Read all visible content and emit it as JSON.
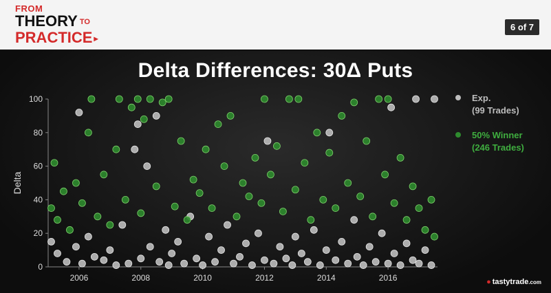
{
  "header": {
    "logo_line1": "FROM",
    "logo_line2": "THEORY",
    "logo_to": "TO",
    "logo_line3": "PRACTICE",
    "page_badge": "6 of 7"
  },
  "brand": {
    "name": "tastytrade",
    "suffix": ".com"
  },
  "colors": {
    "accent": "#d42a2a",
    "exp_series": "#bdbdbd",
    "winner_series": "#2e8b2e"
  },
  "chart_data": {
    "type": "scatter",
    "title": "Delta Differences: 30Δ Puts",
    "xlabel": "",
    "ylabel": "Delta",
    "xlim": [
      2005,
      2017.6
    ],
    "ylim": [
      0,
      100
    ],
    "x_ticks": [
      2006,
      2008,
      2010,
      2012,
      2014,
      2016
    ],
    "y_ticks": [
      0,
      20,
      40,
      60,
      80,
      100
    ],
    "grid": false,
    "legend_position": "right",
    "series": [
      {
        "name": "Exp.",
        "legend_note": "(99 Trades)",
        "color": "#bdbdbd",
        "points": [
          [
            2005.1,
            15
          ],
          [
            2005.3,
            8
          ],
          [
            2005.6,
            3
          ],
          [
            2005.9,
            12
          ],
          [
            2006.0,
            92
          ],
          [
            2006.1,
            2
          ],
          [
            2006.3,
            18
          ],
          [
            2006.5,
            6
          ],
          [
            2006.8,
            4
          ],
          [
            2007.0,
            10
          ],
          [
            2007.2,
            1
          ],
          [
            2007.4,
            25
          ],
          [
            2007.6,
            2
          ],
          [
            2007.8,
            70
          ],
          [
            2007.9,
            85
          ],
          [
            2008.0,
            5
          ],
          [
            2008.2,
            60
          ],
          [
            2008.3,
            12
          ],
          [
            2008.5,
            90
          ],
          [
            2008.6,
            3
          ],
          [
            2008.8,
            22
          ],
          [
            2008.9,
            1
          ],
          [
            2009.0,
            8
          ],
          [
            2009.2,
            15
          ],
          [
            2009.4,
            2
          ],
          [
            2009.6,
            30
          ],
          [
            2009.8,
            5
          ],
          [
            2010.0,
            1
          ],
          [
            2010.2,
            18
          ],
          [
            2010.4,
            3
          ],
          [
            2010.6,
            10
          ],
          [
            2010.8,
            25
          ],
          [
            2011.0,
            2
          ],
          [
            2011.2,
            6
          ],
          [
            2011.4,
            14
          ],
          [
            2011.6,
            1
          ],
          [
            2011.8,
            20
          ],
          [
            2012.0,
            4
          ],
          [
            2012.1,
            75
          ],
          [
            2012.3,
            2
          ],
          [
            2012.5,
            12
          ],
          [
            2012.7,
            5
          ],
          [
            2012.9,
            1
          ],
          [
            2013.0,
            18
          ],
          [
            2013.2,
            8
          ],
          [
            2013.4,
            3
          ],
          [
            2013.6,
            22
          ],
          [
            2013.8,
            1
          ],
          [
            2014.0,
            10
          ],
          [
            2014.1,
            80
          ],
          [
            2014.3,
            4
          ],
          [
            2014.5,
            15
          ],
          [
            2014.7,
            2
          ],
          [
            2014.9,
            28
          ],
          [
            2015.0,
            6
          ],
          [
            2015.2,
            1
          ],
          [
            2015.4,
            12
          ],
          [
            2015.6,
            3
          ],
          [
            2015.8,
            20
          ],
          [
            2016.0,
            2
          ],
          [
            2016.1,
            95
          ],
          [
            2016.2,
            8
          ],
          [
            2016.4,
            1
          ],
          [
            2016.6,
            14
          ],
          [
            2016.8,
            4
          ],
          [
            2016.9,
            100
          ],
          [
            2017.0,
            2
          ],
          [
            2017.2,
            10
          ],
          [
            2017.4,
            1
          ],
          [
            2017.5,
            100
          ]
        ]
      },
      {
        "name": "50% Winner",
        "legend_note": "(246 Trades)",
        "color": "#2e8b2e",
        "points": [
          [
            2005.1,
            35
          ],
          [
            2005.2,
            62
          ],
          [
            2005.3,
            28
          ],
          [
            2005.5,
            45
          ],
          [
            2005.7,
            22
          ],
          [
            2005.9,
            50
          ],
          [
            2006.1,
            38
          ],
          [
            2006.3,
            80
          ],
          [
            2006.4,
            100
          ],
          [
            2006.6,
            30
          ],
          [
            2006.8,
            55
          ],
          [
            2007.0,
            25
          ],
          [
            2007.2,
            70
          ],
          [
            2007.3,
            100
          ],
          [
            2007.5,
            40
          ],
          [
            2007.7,
            95
          ],
          [
            2007.9,
            100
          ],
          [
            2008.0,
            32
          ],
          [
            2008.1,
            88
          ],
          [
            2008.3,
            100
          ],
          [
            2008.5,
            48
          ],
          [
            2008.7,
            98
          ],
          [
            2008.9,
            100
          ],
          [
            2009.1,
            36
          ],
          [
            2009.3,
            75
          ],
          [
            2009.5,
            28
          ],
          [
            2009.7,
            52
          ],
          [
            2009.9,
            44
          ],
          [
            2010.1,
            70
          ],
          [
            2010.3,
            35
          ],
          [
            2010.5,
            85
          ],
          [
            2010.7,
            60
          ],
          [
            2010.9,
            90
          ],
          [
            2011.1,
            30
          ],
          [
            2011.3,
            50
          ],
          [
            2011.5,
            42
          ],
          [
            2011.7,
            65
          ],
          [
            2011.9,
            38
          ],
          [
            2012.0,
            100
          ],
          [
            2012.2,
            55
          ],
          [
            2012.4,
            72
          ],
          [
            2012.6,
            33
          ],
          [
            2012.8,
            100
          ],
          [
            2013.0,
            46
          ],
          [
            2013.1,
            100
          ],
          [
            2013.3,
            62
          ],
          [
            2013.5,
            28
          ],
          [
            2013.7,
            80
          ],
          [
            2013.9,
            40
          ],
          [
            2014.1,
            68
          ],
          [
            2014.3,
            35
          ],
          [
            2014.5,
            90
          ],
          [
            2014.7,
            50
          ],
          [
            2014.9,
            98
          ],
          [
            2015.1,
            42
          ],
          [
            2015.3,
            75
          ],
          [
            2015.5,
            30
          ],
          [
            2015.7,
            100
          ],
          [
            2015.9,
            55
          ],
          [
            2016.0,
            100
          ],
          [
            2016.2,
            38
          ],
          [
            2016.4,
            65
          ],
          [
            2016.6,
            28
          ],
          [
            2016.8,
            48
          ],
          [
            2017.0,
            35
          ],
          [
            2017.2,
            22
          ],
          [
            2017.4,
            40
          ],
          [
            2017.5,
            18
          ]
        ]
      }
    ]
  }
}
